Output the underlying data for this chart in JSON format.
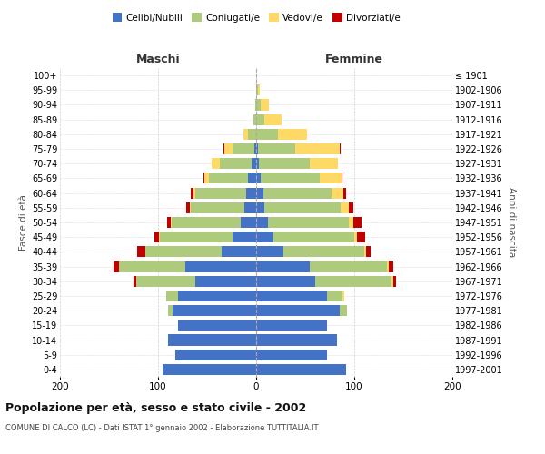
{
  "age_groups": [
    "0-4",
    "5-9",
    "10-14",
    "15-19",
    "20-24",
    "25-29",
    "30-34",
    "35-39",
    "40-44",
    "45-49",
    "50-54",
    "55-59",
    "60-64",
    "65-69",
    "70-74",
    "75-79",
    "80-84",
    "85-89",
    "90-94",
    "95-99",
    "100+"
  ],
  "birth_years": [
    "1997-2001",
    "1992-1996",
    "1987-1991",
    "1982-1986",
    "1977-1981",
    "1972-1976",
    "1967-1971",
    "1962-1966",
    "1957-1961",
    "1952-1956",
    "1947-1951",
    "1942-1946",
    "1937-1941",
    "1932-1936",
    "1927-1931",
    "1922-1926",
    "1917-1921",
    "1912-1916",
    "1907-1911",
    "1902-1906",
    "≤ 1901"
  ],
  "male_celibi": [
    95,
    82,
    90,
    80,
    85,
    80,
    62,
    72,
    35,
    24,
    16,
    12,
    10,
    8,
    5,
    2,
    0,
    0,
    0,
    0,
    0
  ],
  "male_coniugati": [
    0,
    0,
    0,
    0,
    5,
    12,
    60,
    68,
    78,
    74,
    70,
    55,
    52,
    40,
    32,
    22,
    8,
    3,
    1,
    0,
    0
  ],
  "male_vedovi": [
    0,
    0,
    0,
    0,
    0,
    0,
    0,
    0,
    0,
    1,
    1,
    1,
    2,
    5,
    8,
    8,
    5,
    0,
    0,
    0,
    0
  ],
  "male_divorziati": [
    0,
    0,
    0,
    0,
    0,
    0,
    3,
    5,
    8,
    5,
    4,
    3,
    3,
    1,
    0,
    1,
    0,
    0,
    0,
    0,
    0
  ],
  "female_nubili": [
    92,
    72,
    82,
    72,
    85,
    72,
    60,
    55,
    28,
    18,
    12,
    8,
    7,
    5,
    3,
    2,
    0,
    0,
    0,
    0,
    0
  ],
  "female_coniugate": [
    0,
    0,
    0,
    0,
    8,
    16,
    78,
    78,
    82,
    82,
    82,
    78,
    70,
    60,
    52,
    38,
    22,
    8,
    5,
    2,
    0
  ],
  "female_vedove": [
    0,
    0,
    0,
    0,
    0,
    2,
    2,
    2,
    2,
    3,
    5,
    8,
    12,
    22,
    28,
    45,
    30,
    18,
    8,
    2,
    0
  ],
  "female_divorziate": [
    0,
    0,
    0,
    0,
    0,
    0,
    3,
    5,
    5,
    8,
    8,
    5,
    3,
    1,
    0,
    1,
    0,
    0,
    0,
    0,
    0
  ],
  "colors": {
    "celibi_nubili": "#4472C4",
    "coniugati": "#AECB7D",
    "vedovi": "#FFD966",
    "divorziati": "#C00000"
  },
  "title": "Popolazione per età, sesso e stato civile - 2002",
  "subtitle": "COMUNE DI CALCO (LC) - Dati ISTAT 1° gennaio 2002 - Elaborazione TUTTITALIA.IT",
  "xlabel_left": "Maschi",
  "xlabel_right": "Femmine",
  "ylabel_left": "Fasce di età",
  "ylabel_right": "Anni di nascita",
  "xlim": 200,
  "bg_color": "#FFFFFF",
  "grid_color": "#CCCCCC",
  "legend_labels": [
    "Celibi/Nubili",
    "Coniugati/e",
    "Vedovi/e",
    "Divorziati/e"
  ]
}
